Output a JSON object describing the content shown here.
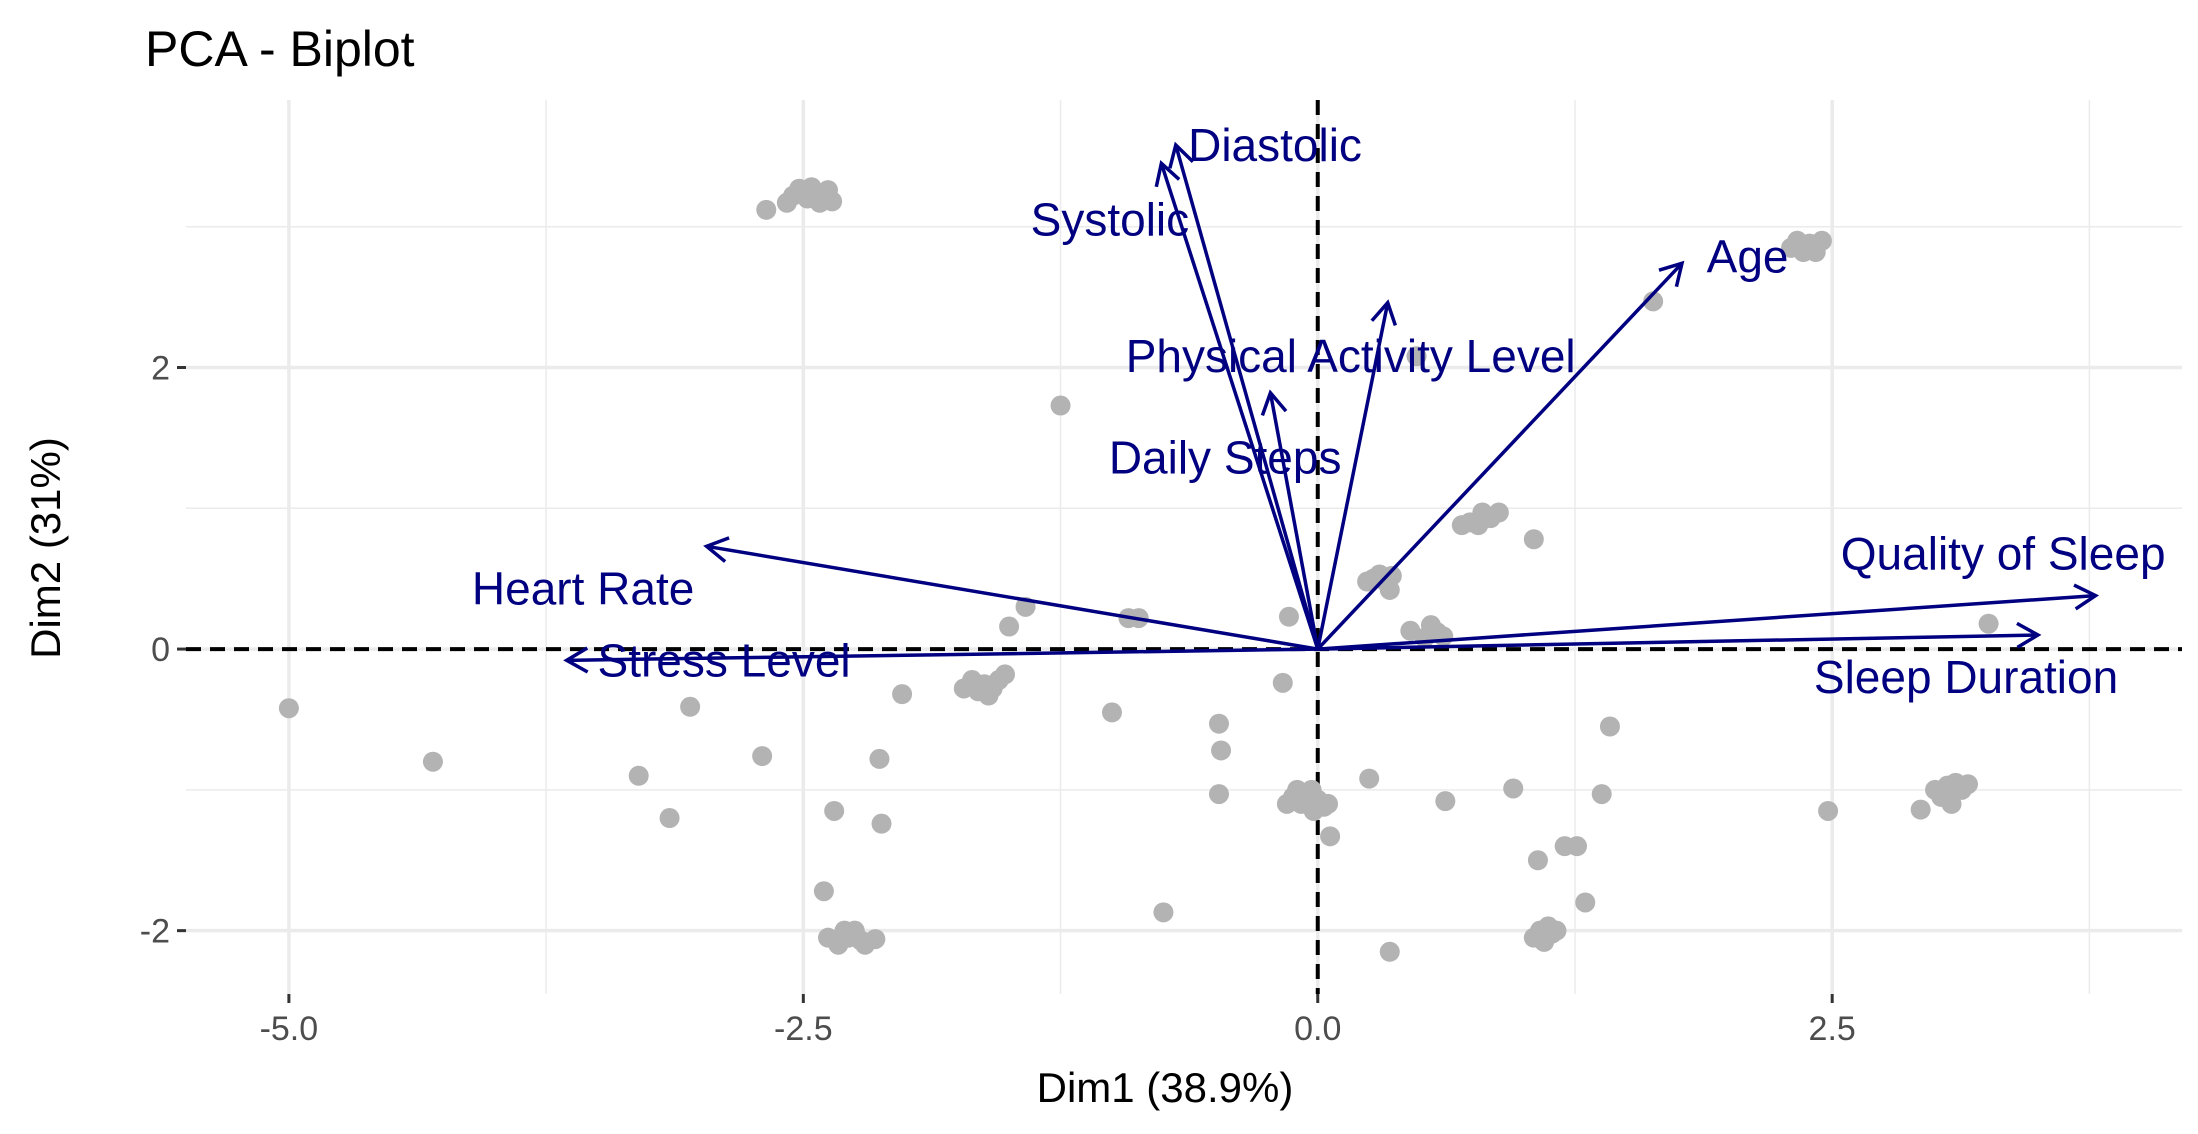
{
  "chart_data": {
    "type": "scatter",
    "title": "PCA - Biplot",
    "xlabel": "Dim1 (38.9%)",
    "ylabel": "Dim2 (31%)",
    "xlim": [
      -5.5,
      4.2
    ],
    "ylim": [
      -2.45,
      3.9
    ],
    "x_ticks": [
      -5.0,
      -2.5,
      0.0,
      2.5
    ],
    "x_tick_labels": [
      "-5.0",
      "-2.5",
      "0.0",
      "2.5"
    ],
    "y_ticks": [
      -2,
      0,
      2
    ],
    "y_tick_labels": [
      "-2",
      "0",
      "2"
    ],
    "x_minor_ticks": [
      -3.75,
      -1.25,
      1.25,
      3.75
    ],
    "y_minor_ticks": [
      -1,
      1,
      3
    ],
    "grid": true,
    "reference_lines": {
      "x": 0,
      "y": 0,
      "style": "dashed"
    },
    "colors": {
      "points": "#b3b3b3",
      "arrows": "#000080",
      "grid": "#ebebeb",
      "reference": "#000000"
    },
    "individuals": [
      {
        "x": -5.0,
        "y": -0.42
      },
      {
        "x": -4.3,
        "y": -0.8
      },
      {
        "x": -3.3,
        "y": -0.9
      },
      {
        "x": -3.05,
        "y": -0.41
      },
      {
        "x": -3.15,
        "y": -1.2
      },
      {
        "x": -2.7,
        "y": -0.76
      },
      {
        "x": -2.68,
        "y": 3.12
      },
      {
        "x": -2.58,
        "y": 3.17
      },
      {
        "x": -2.55,
        "y": 3.22
      },
      {
        "x": -2.52,
        "y": 3.27
      },
      {
        "x": -2.48,
        "y": 3.2
      },
      {
        "x": -2.45,
        "y": 3.25
      },
      {
        "x": -2.42,
        "y": 3.17
      },
      {
        "x": -2.46,
        "y": 3.28
      },
      {
        "x": -2.36,
        "y": 3.18
      },
      {
        "x": -2.38,
        "y": 3.26
      },
      {
        "x": -2.4,
        "y": -1.72
      },
      {
        "x": -2.35,
        "y": -1.15
      },
      {
        "x": -2.38,
        "y": -2.05
      },
      {
        "x": -2.33,
        "y": -2.1
      },
      {
        "x": -2.3,
        "y": -2.0
      },
      {
        "x": -2.28,
        "y": -2.05
      },
      {
        "x": -2.25,
        "y": -2.0
      },
      {
        "x": -2.22,
        "y": -2.07
      },
      {
        "x": -2.2,
        "y": -2.1
      },
      {
        "x": -2.15,
        "y": -2.06
      },
      {
        "x": -2.13,
        "y": -0.78
      },
      {
        "x": -2.12,
        "y": -1.24
      },
      {
        "x": -2.02,
        "y": -0.32
      },
      {
        "x": -1.72,
        "y": -0.28
      },
      {
        "x": -1.68,
        "y": -0.22
      },
      {
        "x": -1.65,
        "y": -0.3
      },
      {
        "x": -1.62,
        "y": -0.25
      },
      {
        "x": -1.6,
        "y": -0.33
      },
      {
        "x": -1.58,
        "y": -0.28
      },
      {
        "x": -1.55,
        "y": -0.22
      },
      {
        "x": -1.52,
        "y": -0.18
      },
      {
        "x": -1.5,
        "y": 0.16
      },
      {
        "x": -1.42,
        "y": 0.3
      },
      {
        "x": -1.25,
        "y": 1.73
      },
      {
        "x": -1.0,
        "y": -0.45
      },
      {
        "x": -0.92,
        "y": 0.22
      },
      {
        "x": -0.87,
        "y": 0.22
      },
      {
        "x": -0.75,
        "y": -1.87
      },
      {
        "x": -0.48,
        "y": -0.53
      },
      {
        "x": -0.47,
        "y": -0.72
      },
      {
        "x": -0.48,
        "y": -1.03
      },
      {
        "x": -0.17,
        "y": -0.24
      },
      {
        "x": -0.14,
        "y": 0.23
      },
      {
        "x": -0.15,
        "y": -1.1
      },
      {
        "x": -0.12,
        "y": -1.05
      },
      {
        "x": -0.1,
        "y": -1.0
      },
      {
        "x": -0.08,
        "y": -1.1
      },
      {
        "x": -0.05,
        "y": -1.05
      },
      {
        "x": -0.03,
        "y": -1.0
      },
      {
        "x": 0.0,
        "y": -1.07
      },
      {
        "x": -0.02,
        "y": -1.15
      },
      {
        "x": 0.03,
        "y": -1.12
      },
      {
        "x": 0.06,
        "y": -1.33
      },
      {
        "x": 0.05,
        "y": -1.1
      },
      {
        "x": 0.25,
        "y": -0.92
      },
      {
        "x": 0.24,
        "y": 0.48
      },
      {
        "x": 0.27,
        "y": 0.5
      },
      {
        "x": 0.3,
        "y": 0.53
      },
      {
        "x": 0.33,
        "y": 0.48
      },
      {
        "x": 0.36,
        "y": 0.52
      },
      {
        "x": 0.35,
        "y": 0.42
      },
      {
        "x": 0.35,
        "y": -2.15
      },
      {
        "x": 0.45,
        "y": 0.13
      },
      {
        "x": 0.48,
        "y": 2.08
      },
      {
        "x": 0.52,
        "y": 0.08
      },
      {
        "x": 0.55,
        "y": 0.17
      },
      {
        "x": 0.58,
        "y": 0.12
      },
      {
        "x": 0.61,
        "y": 0.09
      },
      {
        "x": 0.62,
        "y": -1.08
      },
      {
        "x": 0.7,
        "y": 0.88
      },
      {
        "x": 0.74,
        "y": 0.9
      },
      {
        "x": 0.78,
        "y": 0.88
      },
      {
        "x": 0.8,
        "y": 0.97
      },
      {
        "x": 0.84,
        "y": 0.93
      },
      {
        "x": 0.88,
        "y": 0.97
      },
      {
        "x": 0.95,
        "y": -0.99
      },
      {
        "x": 1.05,
        "y": 0.78
      },
      {
        "x": 1.07,
        "y": -1.5
      },
      {
        "x": 1.05,
        "y": -2.05
      },
      {
        "x": 1.08,
        "y": -2.0
      },
      {
        "x": 1.1,
        "y": -2.08
      },
      {
        "x": 1.12,
        "y": -1.97
      },
      {
        "x": 1.14,
        "y": -2.02
      },
      {
        "x": 1.16,
        "y": -2.0
      },
      {
        "x": 1.2,
        "y": -1.4
      },
      {
        "x": 1.26,
        "y": -1.4
      },
      {
        "x": 1.3,
        "y": -1.8
      },
      {
        "x": 1.38,
        "y": -1.03
      },
      {
        "x": 1.42,
        "y": -0.55
      },
      {
        "x": 1.63,
        "y": 2.47
      },
      {
        "x": 2.3,
        "y": 2.85
      },
      {
        "x": 2.33,
        "y": 2.9
      },
      {
        "x": 2.36,
        "y": 2.82
      },
      {
        "x": 2.39,
        "y": 2.88
      },
      {
        "x": 2.42,
        "y": 2.82
      },
      {
        "x": 2.45,
        "y": 2.9
      },
      {
        "x": 2.48,
        "y": -1.15
      },
      {
        "x": 2.93,
        "y": -1.14
      },
      {
        "x": 3.0,
        "y": -1.0
      },
      {
        "x": 3.03,
        "y": -1.05
      },
      {
        "x": 3.06,
        "y": -0.97
      },
      {
        "x": 3.08,
        "y": -1.1
      },
      {
        "x": 3.1,
        "y": -0.95
      },
      {
        "x": 3.13,
        "y": -1.0
      },
      {
        "x": 3.16,
        "y": -0.96
      },
      {
        "x": 3.26,
        "y": 0.18
      }
    ],
    "variables": [
      {
        "name": "Diastolic",
        "x": -0.69,
        "y": 3.58,
        "label_anchor": "start",
        "label_dx": 0.06,
        "label_dy": 0.0
      },
      {
        "name": "Systolic",
        "x": -0.76,
        "y": 3.45,
        "label_anchor": "middle",
        "label_dx": -0.25,
        "label_dy": -0.4
      },
      {
        "name": "Age",
        "x": 1.77,
        "y": 2.74,
        "label_anchor": "start",
        "label_dx": 0.12,
        "label_dy": 0.05
      },
      {
        "name": "Physical Activity Level",
        "x": 0.34,
        "y": 2.46,
        "label_anchor": "middle",
        "label_dx": -0.18,
        "label_dy": -0.38
      },
      {
        "name": "Daily Steps",
        "x": -0.23,
        "y": 1.82,
        "label_anchor": "middle",
        "label_dx": -0.22,
        "label_dy": -0.46
      },
      {
        "name": "Heart Rate",
        "x": -2.97,
        "y": 0.73,
        "label_anchor": "middle",
        "label_dx": -0.6,
        "label_dy": -0.3
      },
      {
        "name": "Stress Level",
        "x": -3.65,
        "y": -0.08,
        "label_anchor": "start",
        "label_dx": 0.15,
        "label_dy": 0.0
      },
      {
        "name": "Quality of Sleep",
        "x": 3.78,
        "y": 0.38,
        "label_anchor": "end",
        "label_dx": 0.34,
        "label_dy": 0.3
      },
      {
        "name": "Sleep Duration",
        "x": 3.5,
        "y": 0.1,
        "label_anchor": "end",
        "label_dx": 0.39,
        "label_dy": -0.3
      }
    ]
  }
}
